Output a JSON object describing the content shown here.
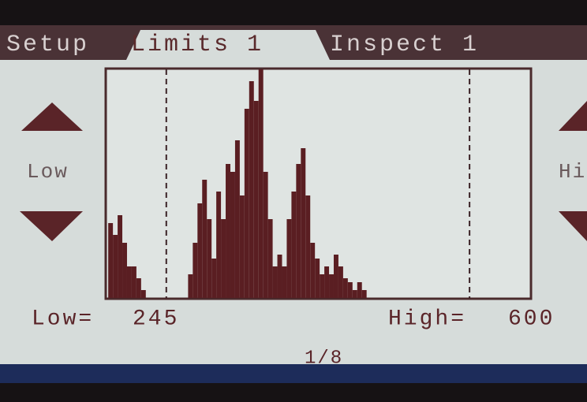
{
  "tabs": [
    "Setup",
    "Limits 1",
    "Inspect 1"
  ],
  "side_labels": {
    "left": "Low",
    "right": "Hi"
  },
  "low_label": "Low=",
  "low": 245,
  "high_label": "High=",
  "high": 600,
  "page": "1/8",
  "histogram": {
    "type": "histogram",
    "color": "#5a1e22",
    "xlim": [
      175,
      671
    ],
    "ylim": [
      0,
      290
    ],
    "bins": [
      177,
      182.5,
      188,
      193.5,
      199,
      204.5,
      210,
      215.5,
      221,
      226.5,
      232,
      237.5,
      243,
      248.5,
      254,
      259.5,
      265,
      270.5,
      276,
      281.5,
      287,
      292.5,
      298,
      303.5,
      309,
      314.5,
      320,
      325.5,
      331,
      336.5,
      342,
      347.5,
      353,
      358.5,
      364,
      369.5,
      375,
      380.5,
      386,
      391.5,
      397,
      402.5,
      408,
      413.5,
      419,
      424.5,
      430,
      435.5,
      441,
      446.5,
      452,
      457.5,
      463,
      468.5,
      474,
      479.5
    ],
    "values": [
      95,
      80,
      105,
      70,
      40,
      40,
      25,
      10,
      0,
      0,
      0,
      0,
      0,
      0,
      0,
      0,
      0,
      30,
      70,
      120,
      150,
      100,
      50,
      135,
      100,
      170,
      160,
      200,
      130,
      240,
      275,
      250,
      290,
      160,
      100,
      40,
      55,
      40,
      100,
      135,
      170,
      190,
      130,
      70,
      50,
      30,
      40,
      30,
      55,
      40,
      25,
      20,
      10,
      20,
      10
    ]
  }
}
